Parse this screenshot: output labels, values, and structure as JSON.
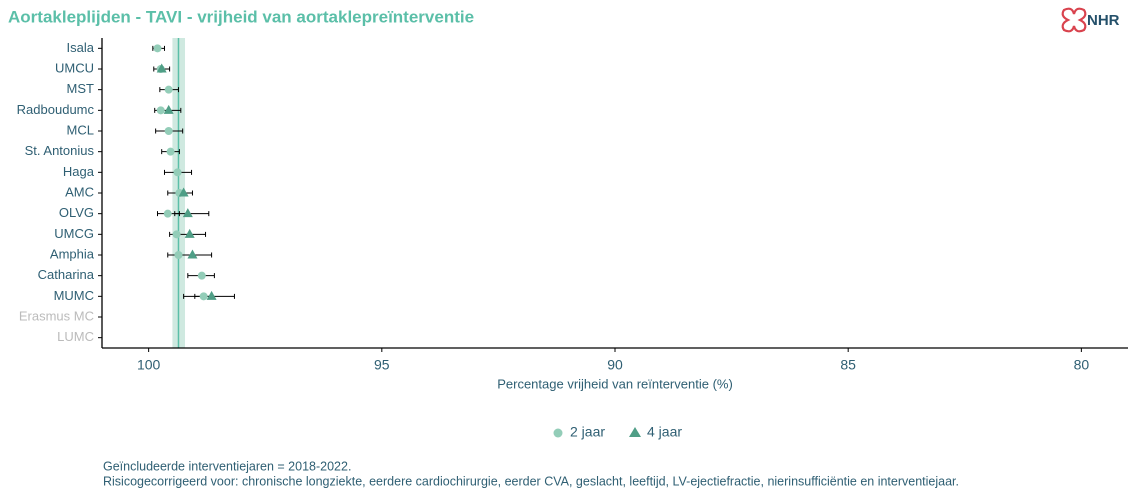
{
  "chart_data": {
    "type": "dotplot",
    "title": "Aortakleplijden - TAVI - vrijheid van aortaklepreïnterventie",
    "logo": "NHR",
    "x_label": "Percentage vrijheid van reïnterventie (%)",
    "categories": [
      "Isala",
      "UMCU",
      "MST",
      "Radboudumc",
      "MCL",
      "St. Antonius",
      "Haga",
      "AMC",
      "OLVG",
      "UMCG",
      "Amphia",
      "Catharina",
      "MUMC",
      "Erasmus MC",
      "LUMC"
    ],
    "xlim": [
      101,
      79
    ],
    "xticks": [
      100,
      95,
      90,
      85,
      80
    ],
    "reference": {
      "mean": 99.36,
      "band": [
        99.49,
        99.22
      ]
    },
    "series": [
      {
        "name": "2 jaar",
        "color": "#93cdb8",
        "marker": "circle",
        "values": [
          99.81,
          99.74,
          99.57,
          99.74,
          99.57,
          99.53,
          99.38,
          99.34,
          99.59,
          99.4,
          99.36,
          98.86,
          98.82,
          null,
          null
        ],
        "upper": [
          99.91,
          99.89,
          99.76,
          null,
          99.85,
          99.72,
          99.66,
          null,
          99.81,
          null,
          null,
          99.16,
          99.25,
          null,
          null
        ],
        "lower": [
          99.66,
          99.55,
          99.36,
          null,
          99.27,
          99.34,
          99.08,
          null,
          99.34,
          null,
          null,
          98.59,
          98.65,
          null,
          null
        ]
      },
      {
        "name": "4 jaar",
        "color": "#4f9e86",
        "marker": "triangle",
        "values": [
          null,
          99.72,
          null,
          99.57,
          null,
          null,
          null,
          99.25,
          99.16,
          99.12,
          99.06,
          null,
          98.65,
          null,
          null
        ],
        "upper": [
          null,
          null,
          null,
          99.87,
          null,
          null,
          null,
          99.59,
          99.44,
          99.55,
          99.59,
          null,
          99.01,
          null,
          null
        ],
        "lower": [
          null,
          null,
          null,
          99.31,
          null,
          null,
          null,
          99.06,
          98.71,
          98.78,
          98.65,
          null,
          98.16,
          null,
          null
        ]
      }
    ],
    "notes": [
      "Geïncludeerde interventiejaren = 2018-2022.",
      "Risicogecorrigeerd voor: chronische longziekte, eerdere cardiochirurgie, eerder CVA, geslacht, leeftijd, LV-ejectiefractie, nierinsufficiëntie en interventiejaar."
    ]
  }
}
